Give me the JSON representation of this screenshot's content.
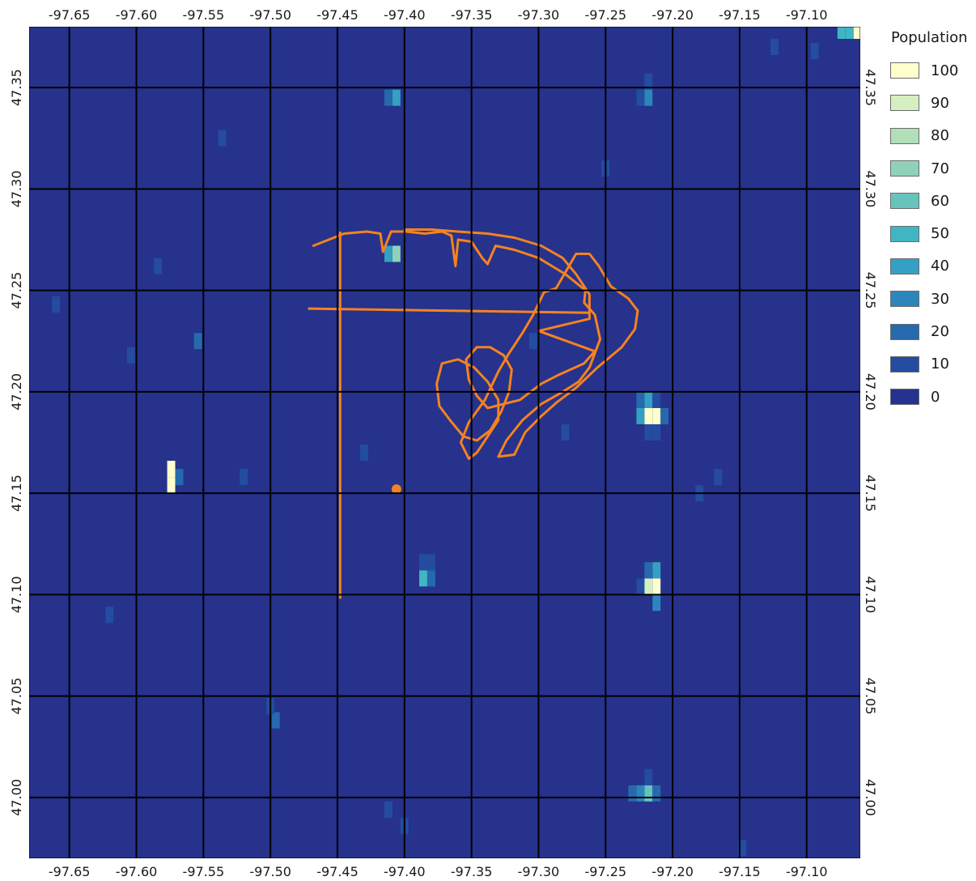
{
  "map": {
    "lon_range": [
      -97.68,
      -97.06
    ],
    "lat_range": [
      46.97,
      47.38
    ],
    "lon_ticks": [
      "-97.65",
      "-97.60",
      "-97.55",
      "-97.50",
      "-97.45",
      "-97.40",
      "-97.35",
      "-97.30",
      "-97.25",
      "-97.20",
      "-97.15",
      "-97.10"
    ],
    "lat_ticks": [
      "47.35",
      "47.30",
      "47.25",
      "47.20",
      "47.15",
      "47.10",
      "47.05",
      "47.00"
    ],
    "background_color": "#26328c",
    "outline_color": "#f58220",
    "grid_color": "#000000"
  },
  "legend": {
    "title": "Population",
    "items": [
      {
        "label": "100",
        "color": "#ffffcc"
      },
      {
        "label": "90",
        "color": "#d6efc2"
      },
      {
        "label": "80",
        "color": "#b1dfb8"
      },
      {
        "label": "70",
        "color": "#8fd2b9"
      },
      {
        "label": "60",
        "color": "#67c4bd"
      },
      {
        "label": "50",
        "color": "#40b5c4"
      },
      {
        "label": "40",
        "color": "#34a0c3"
      },
      {
        "label": "30",
        "color": "#2c86bb"
      },
      {
        "label": "20",
        "color": "#2769ad"
      },
      {
        "label": "10",
        "color": "#244ca0"
      },
      {
        "label": "0",
        "color": "#263290"
      }
    ]
  },
  "cells": [
    {
      "lon": -97.062,
      "lat": 47.378,
      "value": 100
    },
    {
      "lon": -97.068,
      "lat": 47.378,
      "value": 50
    },
    {
      "lon": -97.074,
      "lat": 47.378,
      "value": 50
    },
    {
      "lon": -97.406,
      "lat": 47.345,
      "value": 40
    },
    {
      "lon": -97.412,
      "lat": 47.345,
      "value": 20
    },
    {
      "lon": -97.218,
      "lat": 47.345,
      "value": 30
    },
    {
      "lon": -97.224,
      "lat": 47.345,
      "value": 10
    },
    {
      "lon": -97.218,
      "lat": 47.353,
      "value": 10
    },
    {
      "lon": -97.406,
      "lat": 47.268,
      "value": 70
    },
    {
      "lon": -97.412,
      "lat": 47.268,
      "value": 40
    },
    {
      "lon": -97.218,
      "lat": 47.188,
      "value": 100
    },
    {
      "lon": -97.212,
      "lat": 47.188,
      "value": 100
    },
    {
      "lon": -97.224,
      "lat": 47.188,
      "value": 40
    },
    {
      "lon": -97.218,
      "lat": 47.196,
      "value": 40
    },
    {
      "lon": -97.224,
      "lat": 47.196,
      "value": 20
    },
    {
      "lon": -97.212,
      "lat": 47.196,
      "value": 10
    },
    {
      "lon": -97.206,
      "lat": 47.188,
      "value": 20
    },
    {
      "lon": -97.218,
      "lat": 47.18,
      "value": 10
    },
    {
      "lon": -97.212,
      "lat": 47.18,
      "value": 10
    },
    {
      "lon": -97.574,
      "lat": 47.162,
      "value": 100
    },
    {
      "lon": -97.574,
      "lat": 47.154,
      "value": 100
    },
    {
      "lon": -97.568,
      "lat": 47.158,
      "value": 20
    },
    {
      "lon": -97.386,
      "lat": 47.108,
      "value": 50
    },
    {
      "lon": -97.38,
      "lat": 47.108,
      "value": 20
    },
    {
      "lon": -97.386,
      "lat": 47.116,
      "value": 10
    },
    {
      "lon": -97.38,
      "lat": 47.116,
      "value": 10
    },
    {
      "lon": -97.218,
      "lat": 47.104,
      "value": 90
    },
    {
      "lon": -97.212,
      "lat": 47.104,
      "value": 100
    },
    {
      "lon": -97.212,
      "lat": 47.112,
      "value": 40
    },
    {
      "lon": -97.218,
      "lat": 47.112,
      "value": 20
    },
    {
      "lon": -97.212,
      "lat": 47.096,
      "value": 30
    },
    {
      "lon": -97.224,
      "lat": 47.104,
      "value": 10
    },
    {
      "lon": -97.218,
      "lat": 47.002,
      "value": 60
    },
    {
      "lon": -97.224,
      "lat": 47.002,
      "value": 30
    },
    {
      "lon": -97.23,
      "lat": 47.002,
      "value": 20
    },
    {
      "lon": -97.212,
      "lat": 47.002,
      "value": 20
    },
    {
      "lon": -97.218,
      "lat": 47.01,
      "value": 10
    },
    {
      "lon": -97.604,
      "lat": 47.218,
      "value": 10
    },
    {
      "lon": -97.554,
      "lat": 47.225,
      "value": 20
    },
    {
      "lon": -97.584,
      "lat": 47.262,
      "value": 10
    },
    {
      "lon": -97.66,
      "lat": 47.243,
      "value": 10
    },
    {
      "lon": -97.496,
      "lat": 47.038,
      "value": 20
    },
    {
      "lon": -97.5,
      "lat": 47.045,
      "value": 10
    },
    {
      "lon": -97.412,
      "lat": 46.994,
      "value": 10
    },
    {
      "lon": -97.4,
      "lat": 46.986,
      "value": 10
    },
    {
      "lon": -97.148,
      "lat": 46.975,
      "value": 10
    },
    {
      "lon": -97.094,
      "lat": 47.368,
      "value": 10
    },
    {
      "lon": -97.124,
      "lat": 47.37,
      "value": 10
    },
    {
      "lon": -97.304,
      "lat": 47.225,
      "value": 10
    },
    {
      "lon": -97.43,
      "lat": 47.17,
      "value": 10
    },
    {
      "lon": -97.52,
      "lat": 47.158,
      "value": 10
    },
    {
      "lon": -97.166,
      "lat": 47.158,
      "value": 10
    },
    {
      "lon": -97.18,
      "lat": 47.15,
      "value": 10
    },
    {
      "lon": -97.28,
      "lat": 47.18,
      "value": 10
    },
    {
      "lon": -97.536,
      "lat": 47.325,
      "value": 10
    },
    {
      "lon": -97.62,
      "lat": 47.09,
      "value": 10
    },
    {
      "lon": -97.25,
      "lat": 47.31,
      "value": 10
    }
  ],
  "outlines": [
    {
      "name": "main",
      "pts": [
        [
          -97.468,
          47.272
        ],
        [
          -97.445,
          47.278
        ],
        [
          -97.428,
          47.279
        ],
        [
          -97.418,
          47.278
        ],
        [
          -97.416,
          47.269
        ],
        [
          -97.41,
          47.279
        ],
        [
          -97.398,
          47.279
        ],
        [
          -97.385,
          47.278
        ],
        [
          -97.372,
          47.279
        ],
        [
          -97.365,
          47.277
        ],
        [
          -97.362,
          47.262
        ],
        [
          -97.36,
          47.275
        ],
        [
          -97.35,
          47.274
        ],
        [
          -97.342,
          47.266
        ],
        [
          -97.338,
          47.263
        ],
        [
          -97.332,
          47.272
        ],
        [
          -97.318,
          47.27
        ],
        [
          -97.3,
          47.266
        ],
        [
          -97.28,
          47.258
        ],
        [
          -97.265,
          47.25
        ],
        [
          -97.266,
          47.244
        ],
        [
          -97.258,
          47.238
        ],
        [
          -97.254,
          47.226
        ],
        [
          -97.262,
          47.212
        ],
        [
          -97.27,
          47.205
        ],
        [
          -97.282,
          47.2
        ],
        [
          -97.298,
          47.194
        ],
        [
          -97.312,
          47.186
        ],
        [
          -97.324,
          47.176
        ],
        [
          -97.33,
          47.168
        ],
        [
          -97.318,
          47.169
        ],
        [
          -97.31,
          47.18
        ],
        [
          -97.298,
          47.188
        ],
        [
          -97.286,
          47.195
        ],
        [
          -97.272,
          47.202
        ],
        [
          -97.256,
          47.212
        ],
        [
          -97.238,
          47.222
        ],
        [
          -97.228,
          47.231
        ],
        [
          -97.226,
          47.24
        ],
        [
          -97.233,
          47.246
        ],
        [
          -97.246,
          47.252
        ],
        [
          -97.255,
          47.262
        ],
        [
          -97.262,
          47.268
        ],
        [
          -97.272,
          47.268
        ],
        [
          -97.279,
          47.26
        ],
        [
          -97.287,
          47.251
        ],
        [
          -97.296,
          47.249
        ],
        [
          -97.304,
          47.238
        ],
        [
          -97.312,
          47.229
        ],
        [
          -97.322,
          47.219
        ],
        [
          -97.33,
          47.21
        ],
        [
          -97.34,
          47.196
        ],
        [
          -97.352,
          47.185
        ],
        [
          -97.358,
          47.175
        ],
        [
          -97.352,
          47.167
        ],
        [
          -97.346,
          47.17
        ],
        [
          -97.338,
          47.178
        ],
        [
          -97.33,
          47.186
        ],
        [
          -97.33,
          47.196
        ],
        [
          -97.338,
          47.205
        ],
        [
          -97.348,
          47.212
        ],
        [
          -97.36,
          47.216
        ],
        [
          -97.372,
          47.214
        ],
        [
          -97.376,
          47.204
        ],
        [
          -97.374,
          47.193
        ],
        [
          -97.366,
          47.186
        ],
        [
          -97.356,
          47.178
        ],
        [
          -97.346,
          47.176
        ],
        [
          -97.336,
          47.181
        ],
        [
          -97.328,
          47.19
        ],
        [
          -97.322,
          47.2
        ],
        [
          -97.32,
          47.211
        ],
        [
          -97.326,
          47.218
        ],
        [
          -97.336,
          47.222
        ],
        [
          -97.346,
          47.222
        ],
        [
          -97.354,
          47.216
        ],
        [
          -97.352,
          47.206
        ],
        [
          -97.346,
          47.198
        ],
        [
          -97.338,
          47.192
        ],
        [
          -97.314,
          47.196
        ],
        [
          -97.298,
          47.204
        ],
        [
          -97.286,
          47.208
        ],
        [
          -97.266,
          47.214
        ],
        [
          -97.258,
          47.22
        ],
        [
          -97.3,
          47.23
        ],
        [
          -97.262,
          47.236
        ],
        [
          -97.262,
          47.248
        ],
        [
          -97.272,
          47.258
        ],
        [
          -97.282,
          47.266
        ],
        [
          -97.298,
          47.272
        ],
        [
          -97.318,
          47.276
        ],
        [
          -97.338,
          47.278
        ],
        [
          -97.36,
          47.279
        ],
        [
          -97.38,
          47.28
        ],
        [
          -97.4,
          47.28
        ]
      ]
    }
  ]
}
